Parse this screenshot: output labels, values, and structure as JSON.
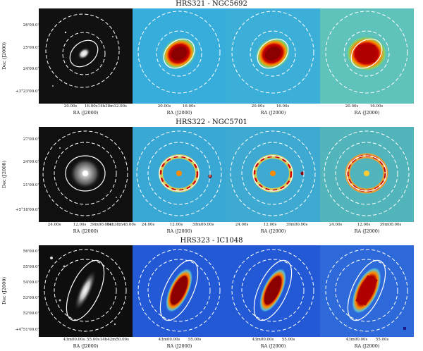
{
  "rows": [
    {
      "title": "HRS321 - NGC5692",
      "ylabel": "Dec (J2000)",
      "yticks": [
        "26'00.0\"",
        "25'00.0\"",
        "24'00.0\"",
        "+3°23'00.0\""
      ],
      "xlabel": "RA (J2000)",
      "xticks_first": [
        "20.00s",
        "16.00s14h38m12.00s"
      ],
      "xticks_other": [
        "20.00s",
        "16.00s"
      ]
    },
    {
      "title": "HRS322 - NGC5701",
      "ylabel": "Dec (J2000)",
      "yticks": [
        "27'00.0\"",
        "24'00.0\"",
        "21'00.0\"",
        "+5°18'00.0\""
      ],
      "xlabel": "RA (J2000)",
      "xticks_first": [
        "24.00s",
        "12.00s",
        "39m00.00s",
        "14h38m48.00s"
      ],
      "xticks_other": [
        "24.00s",
        "12.00s",
        "39m00.00s"
      ]
    },
    {
      "title": "HRS323 - IC1048",
      "ylabel": "Dec (J2000)",
      "yticks": [
        "56'00.0\"",
        "55'00.0\"",
        "54'00.0\"",
        "53'00.0\"",
        "52'00.0\"",
        "+4°51'00.0\""
      ],
      "xlabel": "RA (J2000)",
      "xticks_first": [
        "43m00.00s",
        "55.00s14h42m50.00s"
      ],
      "xticks_other": [
        "43m00.00s",
        "55.00s"
      ]
    }
  ]
}
